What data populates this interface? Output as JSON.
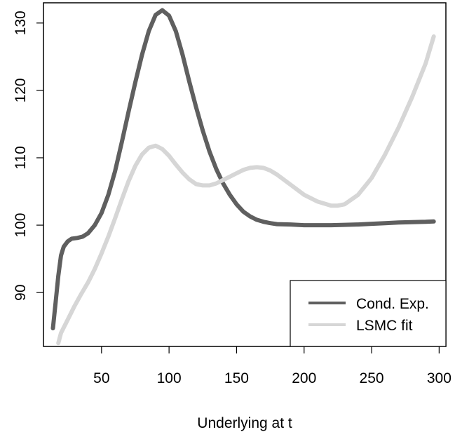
{
  "chart_data": {
    "type": "line",
    "title": "",
    "xlabel": "Underlying at t",
    "ylabel": "",
    "xlim": [
      7,
      305
    ],
    "ylim": [
      82,
      133
    ],
    "x_ticks": [
      "50",
      "100",
      "150",
      "200",
      "250",
      "300"
    ],
    "y_ticks": [
      "90",
      "100",
      "110",
      "120",
      "130"
    ],
    "grid": false,
    "legend_position": "bottom-right",
    "series": [
      {
        "name": "Cond. Exp.",
        "color": "#5f5f5f",
        "x": [
          14,
          16,
          18,
          20,
          22,
          25,
          28,
          32,
          36,
          40,
          45,
          50,
          55,
          60,
          65,
          70,
          75,
          80,
          85,
          90,
          95,
          100,
          105,
          110,
          115,
          120,
          125,
          130,
          135,
          140,
          145,
          150,
          155,
          160,
          165,
          170,
          175,
          180,
          190,
          200,
          210,
          220,
          230,
          240,
          250,
          260,
          270,
          280,
          290,
          296
        ],
        "y": [
          84.7,
          88.5,
          92.5,
          95.5,
          96.8,
          97.6,
          98.0,
          98.1,
          98.3,
          98.8,
          100.0,
          101.8,
          104.5,
          108.0,
          112.3,
          116.8,
          121.2,
          125.3,
          128.8,
          131.2,
          131.9,
          131.1,
          128.8,
          125.3,
          121.3,
          117.5,
          114.0,
          110.9,
          108.3,
          106.2,
          104.5,
          103.1,
          102.0,
          101.3,
          100.8,
          100.5,
          100.3,
          100.15,
          100.1,
          100.0,
          100.0,
          100.0,
          100.05,
          100.1,
          100.2,
          100.3,
          100.4,
          100.45,
          100.5,
          100.55
        ]
      },
      {
        "name": "LSMC fit",
        "color": "#d6d6d6",
        "x": [
          18,
          20,
          25,
          30,
          35,
          40,
          45,
          50,
          55,
          60,
          65,
          70,
          75,
          80,
          85,
          90,
          95,
          100,
          105,
          110,
          115,
          120,
          125,
          130,
          135,
          140,
          145,
          150,
          155,
          160,
          165,
          170,
          175,
          180,
          190,
          200,
          210,
          220,
          225,
          230,
          240,
          250,
          260,
          270,
          280,
          290,
          296
        ],
        "y": [
          82.5,
          84.0,
          86.0,
          88.0,
          89.8,
          91.5,
          93.5,
          95.8,
          98.3,
          101.0,
          103.8,
          106.5,
          108.8,
          110.5,
          111.5,
          111.8,
          111.3,
          110.3,
          109.0,
          107.8,
          106.8,
          106.1,
          105.9,
          105.9,
          106.2,
          106.7,
          107.2,
          107.7,
          108.2,
          108.5,
          108.6,
          108.5,
          108.1,
          107.5,
          106.0,
          104.5,
          103.5,
          102.9,
          102.9,
          103.1,
          104.5,
          107.0,
          110.5,
          114.5,
          119.0,
          124.0,
          128.0
        ]
      }
    ]
  }
}
